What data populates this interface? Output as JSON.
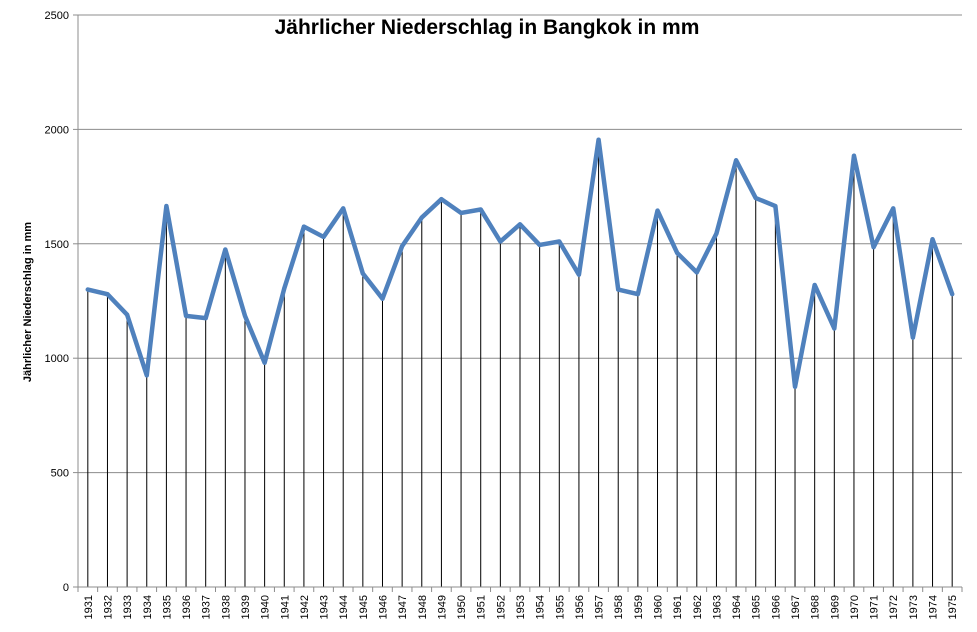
{
  "chart_data": {
    "type": "line",
    "title": "Jährlicher Niederschlag in Bangkok in mm",
    "xlabel": "",
    "ylabel": "Jährlicher Niederschlag in mm",
    "ylim": [
      0,
      2500
    ],
    "yticks": [
      0,
      500,
      1000,
      1500,
      2000,
      2500
    ],
    "grid": true,
    "drop_lines": true,
    "line_color": "#4f81bd",
    "categories": [
      "1931",
      "1932",
      "1933",
      "1934",
      "1935",
      "1936",
      "1937",
      "1938",
      "1939",
      "1940",
      "1941",
      "1942",
      "1943",
      "1944",
      "1945",
      "1946",
      "1947",
      "1948",
      "1949",
      "1950",
      "1951",
      "1952",
      "1953",
      "1954",
      "1955",
      "1956",
      "1957",
      "1958",
      "1959",
      "1960",
      "1961",
      "1962",
      "1963",
      "1964",
      "1965",
      "1966",
      "1967",
      "1968",
      "1969",
      "1970",
      "1971",
      "1972",
      "1973",
      "1974",
      "1975"
    ],
    "series": [
      {
        "values": [
          1300,
          1280,
          1190,
          925,
          1665,
          1185,
          1175,
          1475,
          1185,
          980,
          1305,
          1575,
          1530,
          1655,
          1370,
          1260,
          1490,
          1615,
          1695,
          1635,
          1650,
          1510,
          1585,
          1495,
          1510,
          1365,
          1955,
          1300,
          1280,
          1645,
          1460,
          1375,
          1545,
          1865,
          1700,
          1665,
          875,
          1320,
          1130,
          1885,
          1485,
          1655,
          1090,
          1520,
          1280
        ]
      }
    ]
  }
}
